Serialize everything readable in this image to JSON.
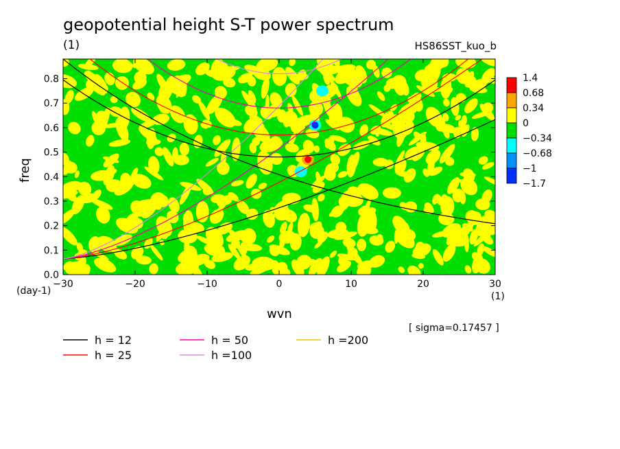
{
  "chart_data": {
    "type": "heatmap",
    "title": "geopotential height S-T power spectrum",
    "subtitle_left": "(1)",
    "subtitle_right": "HS86SST_kuo_b",
    "xlabel": "wvn",
    "ylabel": "freq",
    "x_unit": "(1)",
    "y_unit": "(day-1)",
    "xlim": [
      -30,
      30
    ],
    "ylim": [
      0,
      0.88
    ],
    "x_ticks": [
      -30,
      -20,
      -10,
      0,
      10,
      20,
      30
    ],
    "y_ticks": [
      0.0,
      0.1,
      0.2,
      0.3,
      0.4,
      0.5,
      0.6,
      0.7,
      0.8
    ],
    "color_levels": [
      "1.4",
      "0.68",
      "0.34",
      "0",
      "−0.34",
      "−0.68",
      "−1",
      "−1.7"
    ],
    "color_bins": [
      "#ff0000",
      "#ffa500",
      "#ffff00",
      "#00dd00",
      "#00ffff",
      "#0090ff",
      "#0030ff"
    ],
    "note": "[ sigma=0.17457 ]",
    "dispersion_curves": [
      {
        "label": "h = 12",
        "color": "#000000"
      },
      {
        "label": "h = 25",
        "color": "#ff0000"
      },
      {
        "label": "h = 50",
        "color": "#ff00aa"
      },
      {
        "label": "h =100",
        "color": "#dd88dd"
      },
      {
        "label": "h =200",
        "color": "#e8c000"
      }
    ],
    "anomalies": [
      {
        "x": 4,
        "y": 0.47,
        "value": 1.4
      },
      {
        "x": 5,
        "y": 0.61,
        "value": -1.7
      },
      {
        "x": 6,
        "y": 0.75,
        "value": -0.68
      },
      {
        "x": 3,
        "y": 0.42,
        "value": -0.68
      }
    ],
    "grid": false
  }
}
